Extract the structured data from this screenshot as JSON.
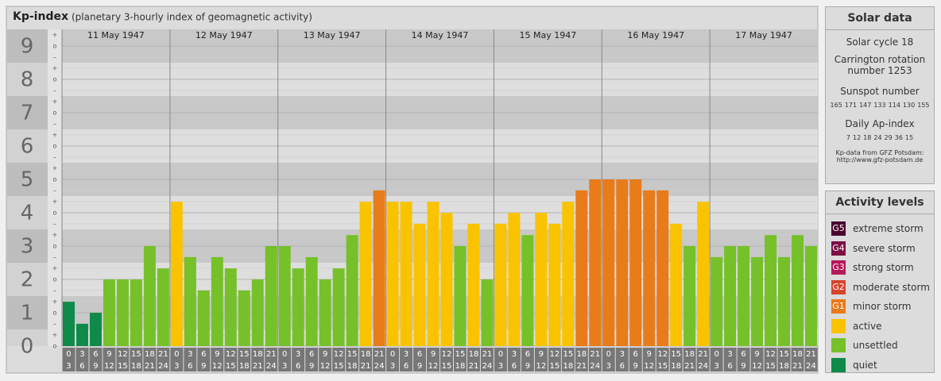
{
  "chart_data": {
    "type": "bar",
    "title": "Kp-index",
    "subtitle": "(planetary 3-hourly index of geomagnetic activity)",
    "days": [
      "11 May 1947",
      "12 May 1947",
      "13 May 1947",
      "14 May 1947",
      "15 May 1947",
      "16 May 1947",
      "17 May 1947"
    ],
    "hour_labels": [
      [
        "0",
        "3"
      ],
      [
        "3",
        "6"
      ],
      [
        "6",
        "9"
      ],
      [
        "9",
        "12"
      ],
      [
        "12",
        "15"
      ],
      [
        "15",
        "18"
      ],
      [
        "18",
        "21"
      ],
      [
        "21",
        "24"
      ]
    ],
    "values": [
      1.33,
      0.67,
      1,
      2,
      2,
      2,
      3,
      2.33,
      4.33,
      2.67,
      1.67,
      2.67,
      2.33,
      1.67,
      2,
      3,
      3,
      2.33,
      2.67,
      2,
      2.33,
      3.33,
      4.33,
      4.67,
      4.33,
      4.33,
      3.67,
      4.33,
      4,
      3,
      3.67,
      2,
      3.67,
      4,
      3.33,
      4,
      3.67,
      4.33,
      4.67,
      5,
      5,
      5,
      5,
      4.67,
      4.67,
      3.67,
      3,
      4.33,
      2.67,
      3,
      3,
      2.67,
      3.33,
      2.67,
      3.33,
      3
    ],
    "colors": [
      "#0f8a4a",
      "#0f8a4a",
      "#0f8a4a",
      "#76c02a",
      "#76c02a",
      "#76c02a",
      "#76c02a",
      "#76c02a",
      "#f9c300",
      "#76c02a",
      "#76c02a",
      "#76c02a",
      "#76c02a",
      "#76c02a",
      "#76c02a",
      "#76c02a",
      "#76c02a",
      "#76c02a",
      "#76c02a",
      "#76c02a",
      "#76c02a",
      "#76c02a",
      "#f9c300",
      "#e87b1a",
      "#f9c300",
      "#f9c300",
      "#f9c300",
      "#f9c300",
      "#f9c300",
      "#76c02a",
      "#f9c300",
      "#76c02a",
      "#f9c300",
      "#f9c300",
      "#76c02a",
      "#f9c300",
      "#f9c300",
      "#f9c300",
      "#e87b1a",
      "#e87b1a",
      "#e87b1a",
      "#e87b1a",
      "#e87b1a",
      "#e87b1a",
      "#e87b1a",
      "#f9c300",
      "#76c02a",
      "#f9c300",
      "#76c02a",
      "#76c02a",
      "#76c02a",
      "#76c02a",
      "#76c02a",
      "#76c02a",
      "#76c02a",
      "#76c02a"
    ],
    "ylim": [
      0,
      9.5
    ],
    "yticks": [
      0,
      1,
      2,
      3,
      4,
      5,
      6,
      7,
      8,
      9
    ],
    "subtick_labels": [
      "–",
      "o",
      "+"
    ]
  },
  "solar_data": {
    "title": "Solar data",
    "cycle": "Solar cycle 18",
    "carrington": "Carrington rotation number 1253",
    "sunspot_title": "Sunspot number",
    "sunspot_values": [
      165,
      171,
      147,
      133,
      114,
      130,
      155
    ],
    "ap_title": "Daily Ap-index",
    "ap_values": [
      7,
      12,
      18,
      24,
      29,
      36,
      15
    ],
    "source": "Kp-data from GFZ Potsdam:",
    "url": "http://www.gfz-potsdam.de"
  },
  "activity_levels": {
    "title": "Activity levels",
    "items": [
      {
        "badge": "G5",
        "label": "extreme storm",
        "color": "#4a0630"
      },
      {
        "badge": "G4",
        "label": "severe storm",
        "color": "#7b0f45"
      },
      {
        "badge": "G3",
        "label": "strong storm",
        "color": "#b8175a"
      },
      {
        "badge": "G2",
        "label": "moderate storm",
        "color": "#d6452c"
      },
      {
        "badge": "G1",
        "label": "minor storm",
        "color": "#e87b1a"
      },
      {
        "badge": null,
        "label": "active",
        "color": "#f9c300"
      },
      {
        "badge": null,
        "label": "unsettled",
        "color": "#76c02a"
      },
      {
        "badge": null,
        "label": "quiet",
        "color": "#0f8a4a"
      }
    ]
  }
}
